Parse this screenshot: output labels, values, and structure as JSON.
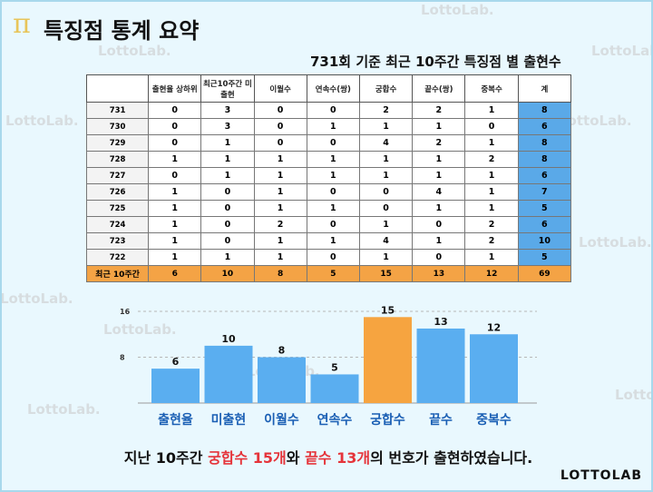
{
  "page": {
    "title": "특징점 통계 요약",
    "subtitle": "731회 기준 최근 10주간 특징점 별 출현수"
  },
  "table": {
    "headers": [
      "",
      "출현율 상하위",
      "최근10주간 미출현",
      "이월수",
      "연속수(쌍)",
      "궁합수",
      "끝수(쌍)",
      "중복수",
      "계"
    ],
    "rows": [
      {
        "label": "731",
        "values": [
          "0",
          "3",
          "0",
          "0",
          "2",
          "2",
          "1"
        ],
        "total": "8"
      },
      {
        "label": "730",
        "values": [
          "0",
          "3",
          "0",
          "1",
          "1",
          "1",
          "0"
        ],
        "total": "6"
      },
      {
        "label": "729",
        "values": [
          "0",
          "1",
          "0",
          "0",
          "4",
          "2",
          "1"
        ],
        "total": "8"
      },
      {
        "label": "728",
        "values": [
          "1",
          "1",
          "1",
          "1",
          "1",
          "1",
          "2"
        ],
        "total": "8"
      },
      {
        "label": "727",
        "values": [
          "0",
          "1",
          "1",
          "1",
          "1",
          "1",
          "1"
        ],
        "total": "6"
      },
      {
        "label": "726",
        "values": [
          "1",
          "0",
          "1",
          "0",
          "0",
          "4",
          "1"
        ],
        "total": "7"
      },
      {
        "label": "725",
        "values": [
          "1",
          "0",
          "1",
          "1",
          "0",
          "1",
          "1"
        ],
        "total": "5"
      },
      {
        "label": "724",
        "values": [
          "1",
          "0",
          "2",
          "0",
          "1",
          "0",
          "2"
        ],
        "total": "6"
      },
      {
        "label": "723",
        "values": [
          "1",
          "0",
          "1",
          "1",
          "4",
          "1",
          "2"
        ],
        "total": "10"
      },
      {
        "label": "722",
        "values": [
          "1",
          "1",
          "1",
          "0",
          "1",
          "0",
          "1"
        ],
        "total": "5"
      }
    ],
    "summary": {
      "label": "최근 10주간",
      "values": [
        "6",
        "10",
        "8",
        "5",
        "15",
        "13",
        "12"
      ],
      "total": "69"
    }
  },
  "chart_data": {
    "type": "bar",
    "categories": [
      "출현율",
      "미출현",
      "이월수",
      "연속수",
      "궁합수",
      "끝수",
      "중복수"
    ],
    "values": [
      6,
      10,
      8,
      5,
      15,
      13,
      12
    ],
    "ylim": [
      0,
      16
    ],
    "yticks": [
      8,
      16
    ],
    "highlight_index": 4,
    "colors": {
      "bar": "#5aaef0",
      "highlight": "#f6a440",
      "label": "#1a5fb4"
    }
  },
  "footer": {
    "before": "지난 10주간 ",
    "hl1": "궁합수 15개",
    "middle": "와 ",
    "hl2": "끝수 13개",
    "after": "의 번호가 출현하였습니다."
  },
  "brand": "LOTTOLAB",
  "watermarks": {
    "text": "LottoLab."
  }
}
